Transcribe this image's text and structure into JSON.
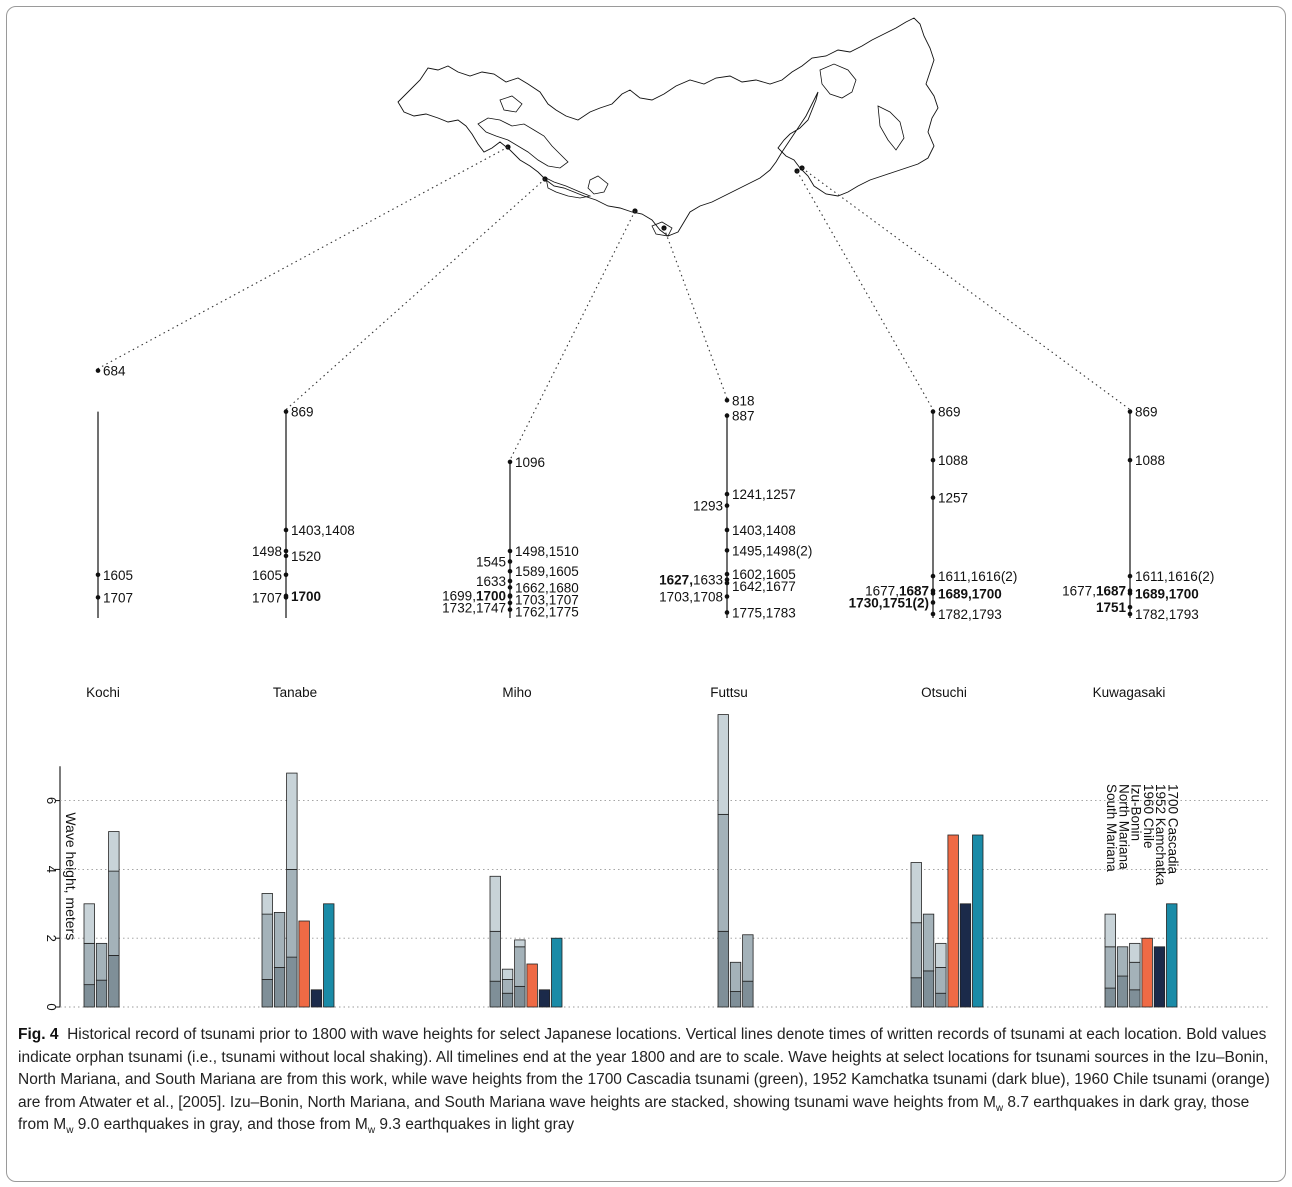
{
  "figure": {
    "label": "Fig. 4",
    "caption_parts": [
      "Historical record of tsunami prior to 1800 with wave heights for select Japanese locations. Vertical lines denote times of written records of tsunami at each location. Bold values indicate orphan tsunami (i.e., tsunami without local shaking). All timelines end at the year 1800 and are to scale. Wave heights at select locations for tsunami sources in the Izu–Bonin, North Mariana, and South Mariana are from this work, while wave heights from the 1700 Cascadia tsunami (green), 1952 Kamchatka tsunami (dark blue), 1960 Chile tsunami (orange) are from Atwater et al., [2005]. Izu–Bonin, North Mariana, and South Mariana wave heights are stacked, showing tsunami wave heights from M",
      "w",
      " 8.7 earthquakes in dark gray, those from M",
      "w",
      " 9.0 earthquakes in gray, and those from M",
      "w",
      " 9.3 earthquakes in light gray"
    ]
  },
  "chart_data": {
    "type": "bar",
    "ylabel": "Wave height, meters",
    "ylim": [
      0,
      7
    ],
    "yticks": [
      0,
      2,
      4,
      6
    ],
    "grid": "horizontal dotted at 2, 4, 6",
    "legend_placement": "above Kuwagasaki bars, rotated",
    "legend": [
      "South Mariana",
      "North Mariana",
      "Izu-Bonin",
      "1960 Chile",
      "1952 Kamchatka",
      "1700 Cascadia"
    ],
    "stack_levels": [
      "Mw 8.7",
      "Mw 9.0",
      "Mw 9.3"
    ],
    "colors": {
      "mw87": "#7f8f98",
      "mw90": "#a4b2b9",
      "mw93": "#c8d3d8",
      "chile": "#ef6a45",
      "kamchatka": "#1b2a4a",
      "cascadia": "#1a8ba7"
    },
    "categories": [
      "Kochi",
      "Tanabe",
      "Miho",
      "Futtsu",
      "Otsuchi",
      "Kuwagasaki"
    ],
    "stacked_series": {
      "names": [
        "South Mariana",
        "North Mariana",
        "Izu-Bonin"
      ],
      "values": {
        "Kochi": [
          [
            0.65,
            1.85,
            3.0
          ],
          [
            0.78,
            1.85,
            1.85
          ],
          [
            1.5,
            3.95,
            5.1
          ]
        ],
        "Tanabe": [
          [
            0.8,
            2.7,
            3.3
          ],
          [
            1.15,
            2.75,
            2.75
          ],
          [
            1.45,
            4.0,
            6.8
          ]
        ],
        "Miho": [
          [
            0.75,
            2.2,
            3.8
          ],
          [
            0.4,
            0.8,
            1.1
          ],
          [
            0.6,
            1.75,
            1.95
          ]
        ],
        "Futtsu": [
          [
            2.2,
            5.6,
            8.5
          ],
          [
            0.45,
            1.3,
            1.3
          ],
          [
            0.75,
            2.1,
            2.1
          ]
        ],
        "Otsuchi": [
          [
            0.85,
            2.45,
            4.2
          ],
          [
            1.05,
            2.7,
            2.7
          ],
          [
            0.4,
            1.15,
            1.85
          ]
        ],
        "Kuwagasaki": [
          [
            0.55,
            1.75,
            2.7
          ],
          [
            0.9,
            1.75,
            1.75
          ],
          [
            0.5,
            1.3,
            1.85
          ]
        ]
      }
    },
    "single_series": {
      "names": [
        "1960 Chile",
        "1952 Kamchatka",
        "1700 Cascadia"
      ],
      "values": {
        "Kochi": [
          null,
          null,
          null
        ],
        "Tanabe": [
          2.5,
          0.5,
          3.0
        ],
        "Miho": [
          1.25,
          0.5,
          2.0
        ],
        "Futtsu": [
          null,
          null,
          null
        ],
        "Otsuchi": [
          5.0,
          3.0,
          5.0
        ],
        "Kuwagasaki": [
          2.0,
          1.75,
          3.0
        ]
      }
    },
    "timelines": {
      "Kochi": [
        {
          "year": 684,
          "label": "684"
        },
        {
          "year": 1605,
          "label": "1605"
        },
        {
          "year": 1707,
          "label": "1707"
        }
      ],
      "Tanabe": [
        {
          "year": 869,
          "label": "869"
        },
        {
          "year": 1403,
          "label": "1403,1408"
        },
        {
          "year": 1498,
          "label": "1498"
        },
        {
          "year": 1520,
          "label": "1520"
        },
        {
          "year": 1605,
          "label": "1605"
        },
        {
          "year": 1707,
          "label": "1707"
        },
        {
          "year": 1700,
          "label": "1700",
          "bold": true
        }
      ],
      "Miho": [
        {
          "year": 1096,
          "label": "1096"
        },
        {
          "year": 1498,
          "label": "1498,1510"
        },
        {
          "year": 1545,
          "label": "1545"
        },
        {
          "year": 1589,
          "label": "1589,1605"
        },
        {
          "year": 1633,
          "label": "1633"
        },
        {
          "year": 1662,
          "label": "1662,1680"
        },
        {
          "year": 1699,
          "label": "1699,1700",
          "bold_part": "1700"
        },
        {
          "year": 1703,
          "label": "1703,1707"
        },
        {
          "year": 1732,
          "label": "1732,1747"
        },
        {
          "year": 1762,
          "label": "1762,1775"
        }
      ],
      "Futtsu": [
        {
          "year": 818,
          "label": "818"
        },
        {
          "year": 887,
          "label": "887"
        },
        {
          "year": 1241,
          "label": "1241,1257"
        },
        {
          "year": 1293,
          "label": "1293"
        },
        {
          "year": 1403,
          "label": "1403,1408"
        },
        {
          "year": 1495,
          "label": "1495,1498(2)"
        },
        {
          "year": 1602,
          "label": "1602,1605"
        },
        {
          "year": 1627,
          "label": "1627,1633",
          "bold_part": "1627"
        },
        {
          "year": 1642,
          "label": "1642,1677"
        },
        {
          "year": 1703,
          "label": "1703,1708"
        },
        {
          "year": 1775,
          "label": "1775,1783"
        }
      ],
      "Otsuchi": [
        {
          "year": 869,
          "label": "869"
        },
        {
          "year": 1088,
          "label": "1088"
        },
        {
          "year": 1257,
          "label": "1257"
        },
        {
          "year": 1611,
          "label": "1611,1616(2)"
        },
        {
          "year": 1677,
          "label": "1677,1687",
          "bold_part": "1687"
        },
        {
          "year": 1689,
          "label": "1689,1700",
          "bold": true
        },
        {
          "year": 1730,
          "label": "1730,1751(2)",
          "bold": true
        },
        {
          "year": 1782,
          "label": "1782,1793"
        }
      ],
      "Kuwagasaki": [
        {
          "year": 869,
          "label": "869"
        },
        {
          "year": 1088,
          "label": "1088"
        },
        {
          "year": 1611,
          "label": "1611,1616(2)"
        },
        {
          "year": 1677,
          "label": "1677,1687",
          "bold_part": "1687"
        },
        {
          "year": 1689,
          "label": "1689,1700",
          "bold": true
        },
        {
          "year": 1751,
          "label": "1751",
          "bold": true
        },
        {
          "year": 1782,
          "label": "1782,1793"
        }
      ]
    }
  }
}
